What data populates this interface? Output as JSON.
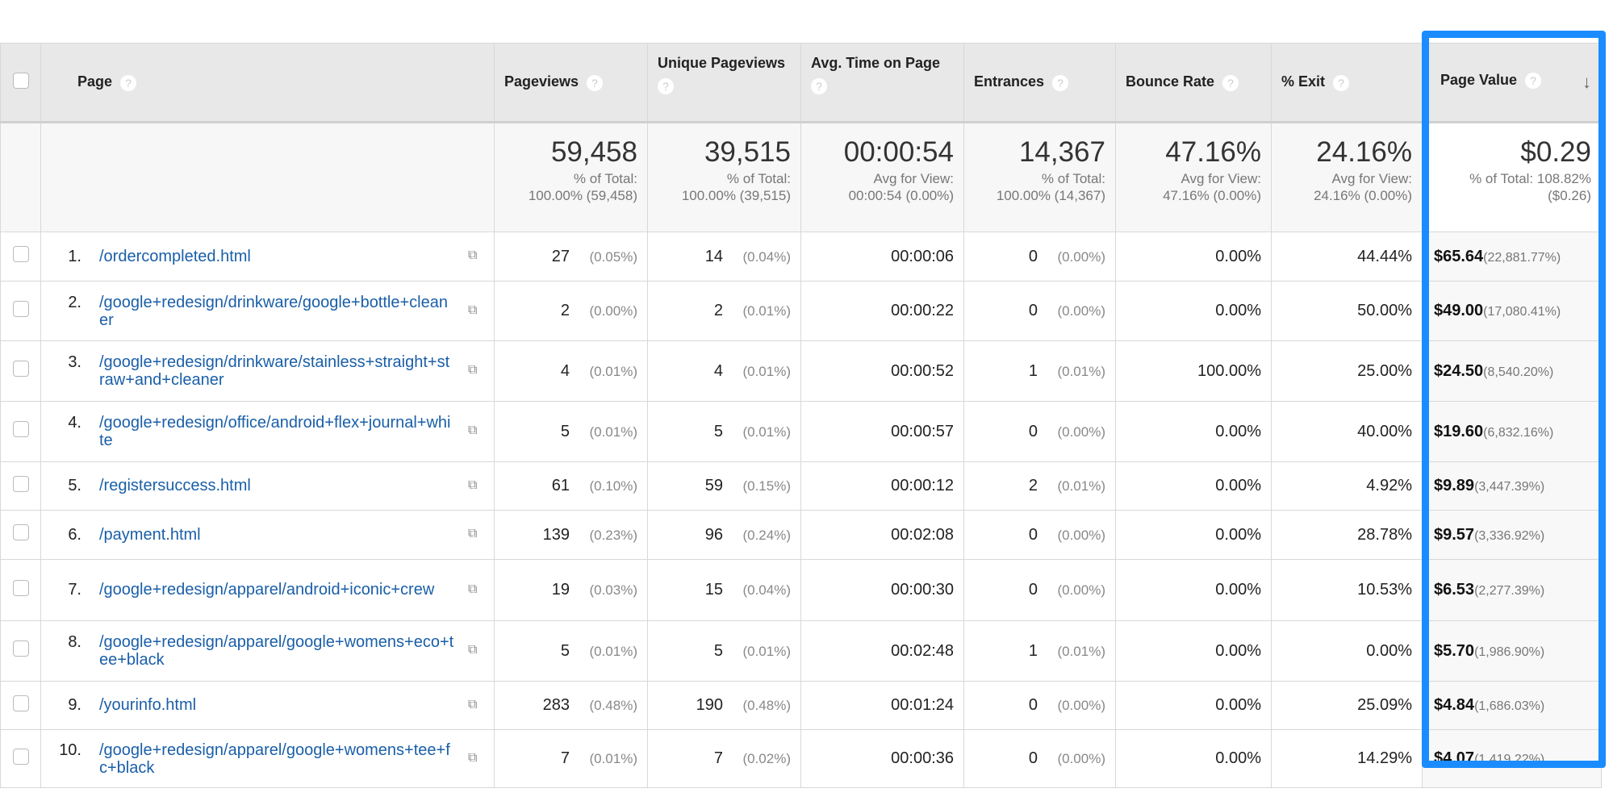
{
  "columns": [
    {
      "label": "Page"
    },
    {
      "label": "Pageviews"
    },
    {
      "label": "Unique Pageviews"
    },
    {
      "label": "Avg. Time on Page"
    },
    {
      "label": "Entrances"
    },
    {
      "label": "Bounce Rate"
    },
    {
      "label": "% Exit"
    },
    {
      "label": "Page Value"
    }
  ],
  "sort_icon": "arrow-down-icon",
  "highlight_color": "#1a8cff",
  "summary": {
    "pageviews": {
      "value": "59,458",
      "l1": "% of Total:",
      "l2": "100.00% (59,458)"
    },
    "unique": {
      "value": "39,515",
      "l1": "% of Total:",
      "l2": "100.00% (39,515)"
    },
    "avg_time": {
      "value": "00:00:54",
      "l1": "Avg for View:",
      "l2": "00:00:54 (0.00%)"
    },
    "entrances": {
      "value": "14,367",
      "l1": "% of Total:",
      "l2": "100.00% (14,367)"
    },
    "bounce": {
      "value": "47.16%",
      "l1": "Avg for View:",
      "l2": "47.16% (0.00%)"
    },
    "exit": {
      "value": "24.16%",
      "l1": "Avg for View:",
      "l2": "24.16% (0.00%)"
    },
    "page_value": {
      "value": "$0.29",
      "l1": "% of Total: 108.82%",
      "l2": "($0.26)"
    }
  },
  "rows": [
    {
      "idx": "1.",
      "page": "/ordercompleted.html",
      "pv": "27",
      "pv_pct": "(0.05%)",
      "upv": "14",
      "upv_pct": "(0.04%)",
      "time": "00:00:06",
      "ent": "0",
      "ent_pct": "(0.00%)",
      "bounce": "0.00%",
      "exit": "44.44%",
      "value": "$65.64",
      "value_pct": "(22,881.77%)"
    },
    {
      "idx": "2.",
      "page": "/google+redesign/drinkware/google+bottle+cleaner",
      "pv": "2",
      "pv_pct": "(0.00%)",
      "upv": "2",
      "upv_pct": "(0.01%)",
      "time": "00:00:22",
      "ent": "0",
      "ent_pct": "(0.00%)",
      "bounce": "0.00%",
      "exit": "50.00%",
      "value": "$49.00",
      "value_pct": "(17,080.41%)"
    },
    {
      "idx": "3.",
      "page": "/google+redesign/drinkware/stainless+straight+straw+and+cleaner",
      "pv": "4",
      "pv_pct": "(0.01%)",
      "upv": "4",
      "upv_pct": "(0.01%)",
      "time": "00:00:52",
      "ent": "1",
      "ent_pct": "(0.01%)",
      "bounce": "100.00%",
      "exit": "25.00%",
      "value": "$24.50",
      "value_pct": "(8,540.20%)"
    },
    {
      "idx": "4.",
      "page": "/google+redesign/office/android+flex+journal+white",
      "pv": "5",
      "pv_pct": "(0.01%)",
      "upv": "5",
      "upv_pct": "(0.01%)",
      "time": "00:00:57",
      "ent": "0",
      "ent_pct": "(0.00%)",
      "bounce": "0.00%",
      "exit": "40.00%",
      "value": "$19.60",
      "value_pct": "(6,832.16%)"
    },
    {
      "idx": "5.",
      "page": "/registersuccess.html",
      "pv": "61",
      "pv_pct": "(0.10%)",
      "upv": "59",
      "upv_pct": "(0.15%)",
      "time": "00:00:12",
      "ent": "2",
      "ent_pct": "(0.01%)",
      "bounce": "0.00%",
      "exit": "4.92%",
      "value": "$9.89",
      "value_pct": "(3,447.39%)"
    },
    {
      "idx": "6.",
      "page": "/payment.html",
      "pv": "139",
      "pv_pct": "(0.23%)",
      "upv": "96",
      "upv_pct": "(0.24%)",
      "time": "00:02:08",
      "ent": "0",
      "ent_pct": "(0.00%)",
      "bounce": "0.00%",
      "exit": "28.78%",
      "value": "$9.57",
      "value_pct": "(3,336.92%)"
    },
    {
      "idx": "7.",
      "page": "/google+redesign/apparel/android+iconic+crew",
      "pv": "19",
      "pv_pct": "(0.03%)",
      "upv": "15",
      "upv_pct": "(0.04%)",
      "time": "00:00:30",
      "ent": "0",
      "ent_pct": "(0.00%)",
      "bounce": "0.00%",
      "exit": "10.53%",
      "value": "$6.53",
      "value_pct": "(2,277.39%)"
    },
    {
      "idx": "8.",
      "page": "/google+redesign/apparel/google+womens+eco+tee+black",
      "pv": "5",
      "pv_pct": "(0.01%)",
      "upv": "5",
      "upv_pct": "(0.01%)",
      "time": "00:02:48",
      "ent": "1",
      "ent_pct": "(0.01%)",
      "bounce": "0.00%",
      "exit": "0.00%",
      "value": "$5.70",
      "value_pct": "(1,986.90%)"
    },
    {
      "idx": "9.",
      "page": "/yourinfo.html",
      "pv": "283",
      "pv_pct": "(0.48%)",
      "upv": "190",
      "upv_pct": "(0.48%)",
      "time": "00:01:24",
      "ent": "0",
      "ent_pct": "(0.00%)",
      "bounce": "0.00%",
      "exit": "25.09%",
      "value": "$4.84",
      "value_pct": "(1,686.03%)"
    },
    {
      "idx": "10.",
      "page": "/google+redesign/apparel/google+womens+tee+fc+black",
      "pv": "7",
      "pv_pct": "(0.01%)",
      "upv": "7",
      "upv_pct": "(0.02%)",
      "time": "00:00:36",
      "ent": "0",
      "ent_pct": "(0.00%)",
      "bounce": "0.00%",
      "exit": "14.29%",
      "value": "$4.07",
      "value_pct": "(1,419.22%)"
    }
  ]
}
